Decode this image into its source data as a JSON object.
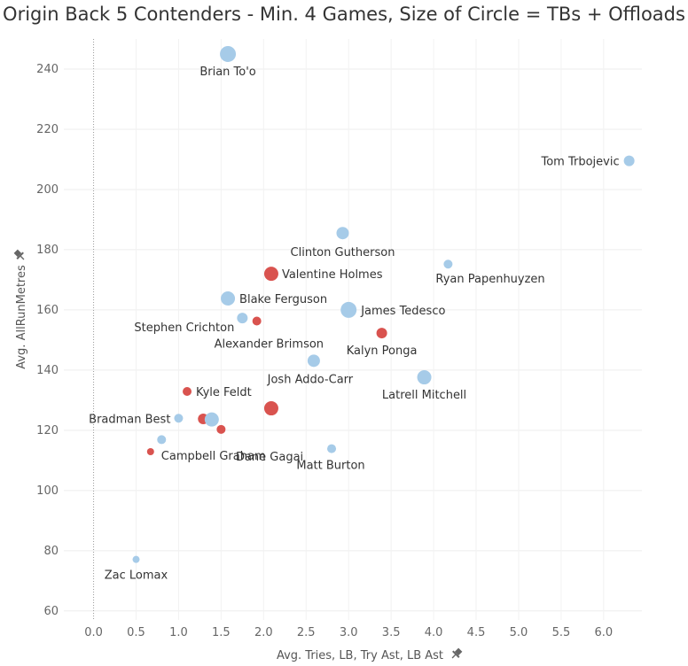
{
  "chart_data": {
    "type": "scatter",
    "title": "Origin Back 5 Contenders - Min. 4 Games, Size of Circle = TBs + Offloads",
    "xlabel": "Avg. Tries, LB, Try Ast, LB Ast",
    "ylabel": "Avg. AllRunMetres",
    "xlim": [
      -0.35,
      6.45
    ],
    "ylim": [
      57,
      250
    ],
    "x_ticks": [
      "0.0",
      "0.5",
      "1.0",
      "1.5",
      "2.0",
      "2.5",
      "3.0",
      "3.5",
      "4.0",
      "4.5",
      "5.0",
      "5.5",
      "6.0"
    ],
    "y_ticks": [
      "60",
      "80",
      "100",
      "120",
      "140",
      "160",
      "180",
      "200",
      "220",
      "240"
    ],
    "grid": true,
    "colors": {
      "blue": "#a6cbe8",
      "red": "#d9534f"
    },
    "points": [
      {
        "name": "Brian To'o",
        "x": 1.58,
        "y": 245,
        "size": 9,
        "color": "blue"
      },
      {
        "name": "Tom Trbojevic",
        "x": 6.3,
        "y": 209.5,
        "size": 6,
        "color": "blue"
      },
      {
        "name": "Clinton Gutherson",
        "x": 2.93,
        "y": 185.5,
        "size": 7,
        "color": "blue"
      },
      {
        "name": "Ryan Papenhuyzen",
        "x": 4.17,
        "y": 175.2,
        "size": 5,
        "color": "blue"
      },
      {
        "name": "Valentine Holmes",
        "x": 2.09,
        "y": 172,
        "size": 8,
        "color": "red"
      },
      {
        "name": "Blake Ferguson",
        "x": 1.58,
        "y": 163.8,
        "size": 8,
        "color": "blue"
      },
      {
        "name": "James Tedesco",
        "x": 3.0,
        "y": 160,
        "size": 9,
        "color": "blue"
      },
      {
        "name": "Stephen Crichton",
        "x": 1.75,
        "y": 157.3,
        "size": 6,
        "color": "blue"
      },
      {
        "name": "Alexander Brimson",
        "x": 1.92,
        "y": 156.3,
        "size": 5,
        "color": "red"
      },
      {
        "name": "Kalyn Ponga",
        "x": 3.39,
        "y": 152.3,
        "size": 6,
        "color": "red"
      },
      {
        "name": "Josh Addo-Carr",
        "x": 2.59,
        "y": 143.1,
        "size": 7,
        "color": "blue"
      },
      {
        "name": "Latrell Mitchell",
        "x": 3.89,
        "y": 137.6,
        "size": 8,
        "color": "blue"
      },
      {
        "name": "Kyle Feldt",
        "x": 1.1,
        "y": 132.9,
        "size": 5,
        "color": "red"
      },
      {
        "name": "Dane Gagai",
        "x": 2.09,
        "y": 127.3,
        "size": 8,
        "color": "red"
      },
      {
        "name": "Bradman Best",
        "x": 1.0,
        "y": 124,
        "size": 5,
        "color": "blue"
      },
      {
        "name": "",
        "x": 1.29,
        "y": 123.8,
        "size": 6,
        "color": "red"
      },
      {
        "name": "",
        "x": 1.39,
        "y": 123.6,
        "size": 8,
        "color": "blue"
      },
      {
        "name": "",
        "x": 1.5,
        "y": 120.3,
        "size": 5,
        "color": "red"
      },
      {
        "name": "",
        "x": 0.8,
        "y": 116.9,
        "size": 5,
        "color": "blue"
      },
      {
        "name": "Campbell Graham",
        "x": 0.67,
        "y": 112.9,
        "size": 4,
        "color": "red"
      },
      {
        "name": "Matt Burton",
        "x": 2.8,
        "y": 113.9,
        "size": 5,
        "color": "blue"
      },
      {
        "name": "Zac Lomax",
        "x": 0.5,
        "y": 77.1,
        "size": 4,
        "color": "blue"
      }
    ]
  }
}
